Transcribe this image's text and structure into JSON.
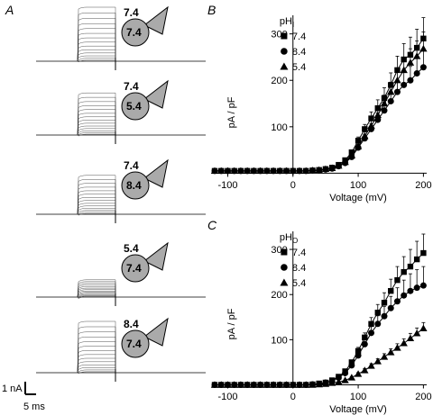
{
  "panels": {
    "a": "A",
    "b": "B",
    "c": "C"
  },
  "traces": [
    {
      "outside_ph": "7.4",
      "inside_ph": "7.4",
      "relative_amplitude": 1.0
    },
    {
      "outside_ph": "7.4",
      "inside_ph": "5.4",
      "relative_amplitude": 0.78
    },
    {
      "outside_ph": "7.4",
      "inside_ph": "8.4",
      "relative_amplitude": 0.72
    },
    {
      "outside_ph": "5.4",
      "inside_ph": "7.4",
      "relative_amplitude": 0.32
    },
    {
      "outside_ph": "8.4",
      "inside_ph": "7.4",
      "relative_amplitude": 0.95
    }
  ],
  "scale_bar": {
    "current": "1 nA",
    "time": "5 ms"
  },
  "chart_data": [
    {
      "type": "line",
      "panel": "B",
      "xlabel": "Voltage (mV)",
      "ylabel": "pA / pF",
      "xlim": [
        -120,
        205
      ],
      "ylim": [
        -5,
        340
      ],
      "xticks": [
        -100,
        0,
        100,
        200
      ],
      "yticks": [
        100,
        200,
        300
      ],
      "legend_title": "pHI",
      "legend_position": "top-left",
      "x": [
        -120,
        -110,
        -100,
        -90,
        -80,
        -70,
        -60,
        -50,
        -40,
        -30,
        -20,
        -10,
        0,
        10,
        20,
        30,
        40,
        50,
        60,
        70,
        80,
        90,
        100,
        110,
        120,
        130,
        140,
        150,
        160,
        170,
        180,
        190,
        200
      ],
      "series": [
        {
          "name": "7.4",
          "marker": "square",
          "values": [
            5,
            5,
            5,
            5,
            5,
            5,
            5,
            5,
            5,
            5,
            5,
            5,
            5,
            5,
            5,
            6,
            7,
            9,
            12,
            18,
            28,
            45,
            70,
            95,
            118,
            140,
            162,
            190,
            222,
            245,
            255,
            270,
            290
          ],
          "error": [
            0,
            0,
            0,
            0,
            0,
            0,
            0,
            0,
            0,
            0,
            0,
            0,
            0,
            0,
            0,
            0,
            0,
            0,
            0,
            2,
            3,
            5,
            8,
            10,
            14,
            18,
            22,
            26,
            30,
            34,
            38,
            40,
            45
          ]
        },
        {
          "name": "8.4",
          "marker": "circle",
          "values": [
            5,
            5,
            5,
            5,
            5,
            5,
            5,
            5,
            5,
            5,
            5,
            5,
            5,
            5,
            5,
            6,
            6,
            8,
            10,
            15,
            22,
            35,
            55,
            75,
            95,
            115,
            135,
            155,
            175,
            190,
            200,
            215,
            228
          ],
          "error": [
            0,
            0,
            0,
            0,
            0,
            0,
            0,
            0,
            0,
            0,
            0,
            0,
            0,
            0,
            0,
            0,
            0,
            0,
            0,
            2,
            3,
            4,
            7,
            9,
            12,
            15,
            18,
            21,
            24,
            27,
            30,
            33,
            36
          ]
        },
        {
          "name": "5.4",
          "marker": "triangle",
          "values": [
            5,
            5,
            5,
            5,
            5,
            5,
            5,
            5,
            5,
            5,
            5,
            5,
            5,
            5,
            5,
            6,
            7,
            9,
            11,
            16,
            24,
            38,
            58,
            80,
            102,
            125,
            150,
            175,
            200,
            222,
            238,
            252,
            268
          ],
          "error": [
            0,
            0,
            0,
            0,
            0,
            0,
            0,
            0,
            0,
            0,
            0,
            0,
            0,
            0,
            0,
            0,
            0,
            0,
            0,
            2,
            3,
            4,
            7,
            9,
            12,
            15,
            18,
            21,
            24,
            27,
            30,
            33,
            36
          ]
        }
      ]
    },
    {
      "type": "line",
      "panel": "C",
      "xlabel": "Voltage (mV)",
      "ylabel": "pA / pF",
      "xlim": [
        -120,
        205
      ],
      "ylim": [
        -5,
        340
      ],
      "xticks": [
        -100,
        0,
        100,
        200
      ],
      "yticks": [
        100,
        200,
        300
      ],
      "legend_title": "pHO",
      "legend_position": "top-left",
      "x": [
        -120,
        -110,
        -100,
        -90,
        -80,
        -70,
        -60,
        -50,
        -40,
        -30,
        -20,
        -10,
        0,
        10,
        20,
        30,
        40,
        50,
        60,
        70,
        80,
        90,
        100,
        110,
        120,
        130,
        140,
        150,
        160,
        170,
        180,
        190,
        200
      ],
      "series": [
        {
          "name": "7.4",
          "marker": "square",
          "values": [
            0,
            0,
            0,
            0,
            0,
            0,
            0,
            0,
            0,
            0,
            0,
            0,
            0,
            0,
            0,
            1,
            3,
            5,
            10,
            18,
            30,
            50,
            75,
            105,
            135,
            160,
            182,
            208,
            232,
            250,
            262,
            278,
            292
          ],
          "error": [
            0,
            0,
            0,
            0,
            0,
            0,
            0,
            0,
            0,
            0,
            0,
            0,
            0,
            0,
            0,
            0,
            0,
            0,
            0,
            2,
            3,
            5,
            8,
            10,
            14,
            18,
            22,
            26,
            30,
            34,
            38,
            40,
            42
          ]
        },
        {
          "name": "8.4",
          "marker": "circle",
          "values": [
            0,
            0,
            0,
            0,
            0,
            0,
            0,
            0,
            0,
            0,
            0,
            0,
            0,
            0,
            0,
            1,
            2,
            5,
            9,
            16,
            26,
            43,
            65,
            90,
            115,
            135,
            152,
            170,
            185,
            198,
            208,
            215,
            220
          ],
          "error": [
            0,
            0,
            0,
            0,
            0,
            0,
            0,
            0,
            0,
            0,
            0,
            0,
            0,
            0,
            0,
            0,
            0,
            0,
            0,
            2,
            3,
            5,
            8,
            10,
            14,
            18,
            22,
            26,
            30,
            34,
            38,
            40,
            42
          ]
        },
        {
          "name": "5.4",
          "marker": "triangle",
          "values": [
            0,
            0,
            0,
            0,
            0,
            0,
            0,
            0,
            0,
            0,
            0,
            0,
            0,
            0,
            0,
            0,
            1,
            2,
            4,
            6,
            10,
            16,
            24,
            32,
            42,
            52,
            62,
            72,
            82,
            92,
            103,
            114,
            125
          ],
          "error": [
            0,
            0,
            0,
            0,
            0,
            0,
            0,
            0,
            0,
            0,
            0,
            0,
            0,
            0,
            0,
            0,
            0,
            0,
            0,
            1,
            1,
            2,
            3,
            4,
            5,
            6,
            7,
            8,
            9,
            10,
            11,
            12,
            13
          ]
        }
      ]
    }
  ]
}
